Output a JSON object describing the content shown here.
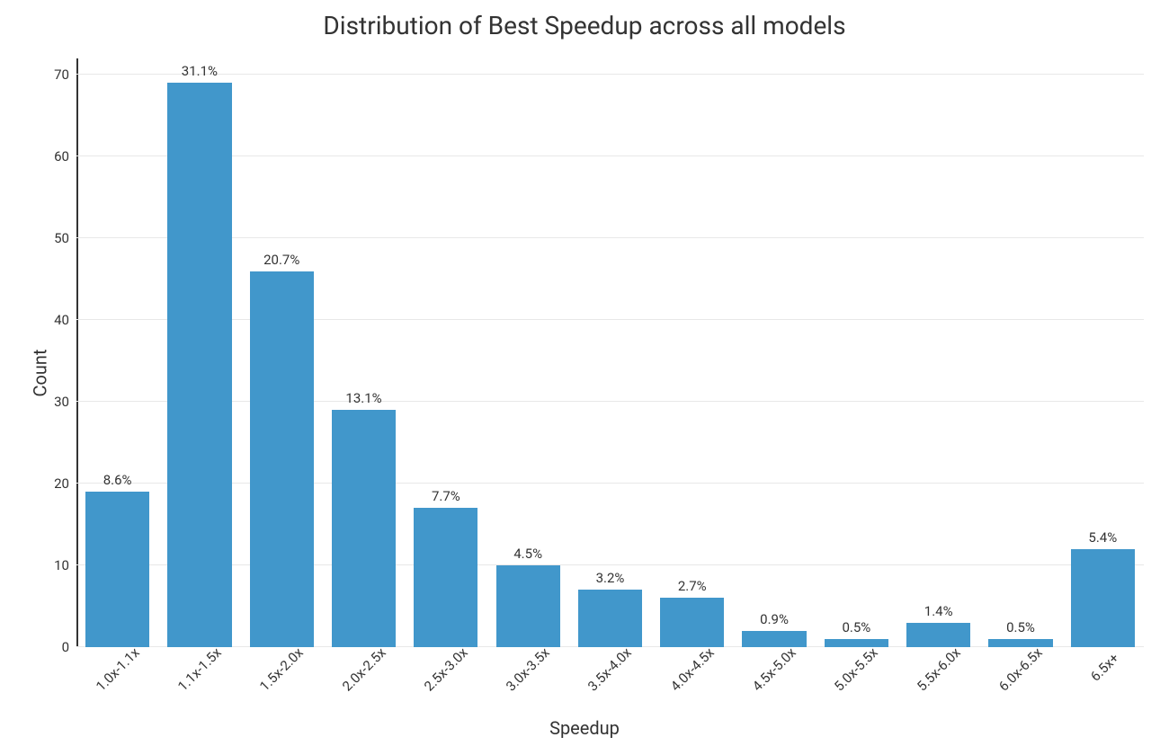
{
  "chart": {
    "type": "bar",
    "title": "Distribution of Best Speedup across all models",
    "title_fontsize": 28,
    "title_color": "#333333",
    "xlabel": "Speedup",
    "ylabel": "Count",
    "label_fontsize": 20,
    "categories": [
      "1.0x-1.1x",
      "1.1x-1.5x",
      "1.5x-2.0x",
      "2.0x-2.5x",
      "2.5x-3.0x",
      "3.0x-3.5x",
      "3.5x-4.0x",
      "4.0x-4.5x",
      "4.5x-5.0x",
      "5.0x-5.5x",
      "5.5x-6.0x",
      "6.0x-6.5x",
      "6.5x+"
    ],
    "values": [
      19,
      69,
      46,
      29,
      17,
      10,
      7,
      6,
      2,
      1,
      3,
      1,
      12
    ],
    "percent_labels": [
      "8.6%",
      "31.1%",
      "20.7%",
      "13.1%",
      "7.7%",
      "4.5%",
      "3.2%",
      "2.7%",
      "0.9%",
      "0.5%",
      "1.4%",
      "0.5%",
      "5.4%"
    ],
    "bar_color": "#4197cb",
    "bar_width": 0.78,
    "ylim": [
      0,
      72
    ],
    "yticks": [
      0,
      10,
      20,
      30,
      40,
      50,
      60,
      70
    ],
    "grid_color": "#e8e8e8",
    "axis_color": "#333333",
    "background_color": "#ffffff",
    "tick_fontsize": 15,
    "pct_fontsize": 15,
    "xtick_rotation_deg": 45
  }
}
